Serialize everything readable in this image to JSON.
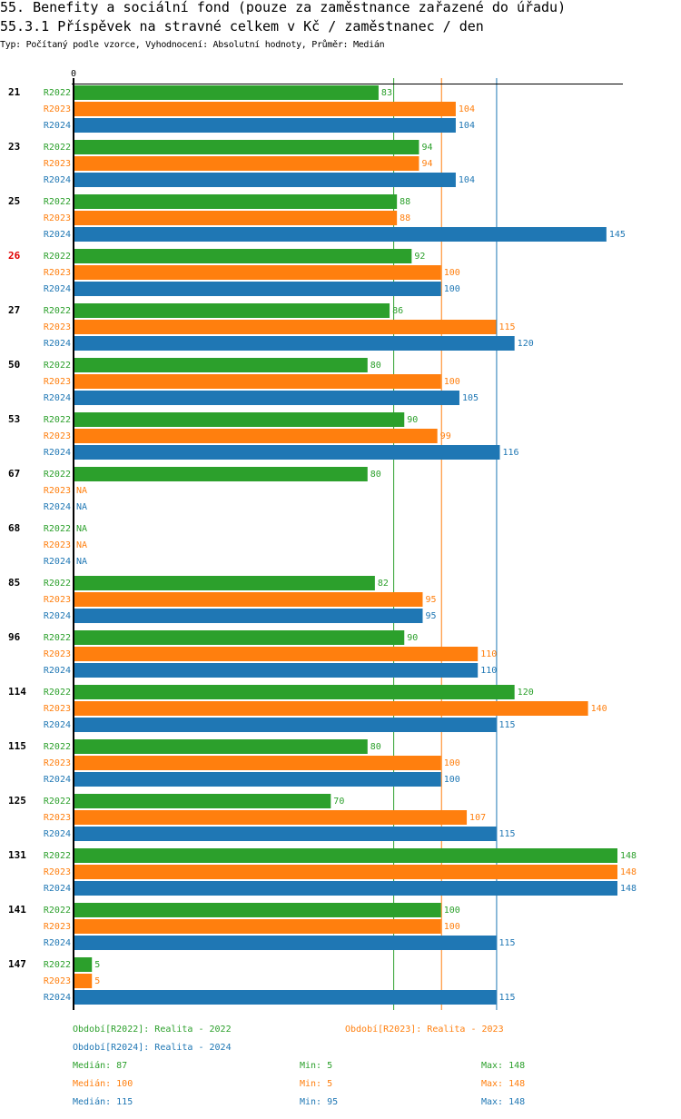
{
  "header": {
    "title": "55. Benefity a sociální fond (pouze za zaměstnance zařazené do úřadu)",
    "subtitle": "55.3.1 Příspěvek na stravné celkem v Kč / zaměstnanec / den",
    "meta": "Typ: Počítaný podle vzorce, Vyhodnocení: Absolutní hodnoty, Průměr: Medián"
  },
  "chart_data": {
    "type": "bar",
    "orientation": "horizontal",
    "title": "55.3.1 Příspěvek na stravné celkem v Kč / zaměstnanec / den",
    "xlabel": "",
    "ylabel": "",
    "axis_zero_label": "0",
    "xlim": [
      0,
      149.5
    ],
    "na_label": "NA",
    "highlight_category": "26",
    "highlight_color": "#e00000",
    "categories": [
      "21",
      "23",
      "25",
      "26",
      "27",
      "50",
      "53",
      "67",
      "68",
      "85",
      "96",
      "114",
      "115",
      "125",
      "131",
      "141",
      "147"
    ],
    "series": [
      {
        "name": "R2022",
        "legend": "Období[R2022]: Realita - 2022",
        "color": "#2ca02c",
        "values": [
          83,
          94,
          88,
          92,
          86,
          80,
          90,
          80,
          null,
          82,
          90,
          120,
          80,
          70,
          148,
          100,
          5
        ],
        "median": 87,
        "min": 5,
        "max": 148,
        "median_label": "Medián: 87",
        "min_label": "Min: 5",
        "max_label": "Max: 148"
      },
      {
        "name": "R2023",
        "legend": "Období[R2023]: Realita - 2023",
        "color": "#ff7f0e",
        "values": [
          104,
          94,
          88,
          100,
          115,
          100,
          99,
          null,
          null,
          95,
          110,
          140,
          100,
          107,
          148,
          100,
          5
        ],
        "median": 100,
        "min": 5,
        "max": 148,
        "median_label": "Medián: 100",
        "min_label": "Min: 5",
        "max_label": "Max: 148"
      },
      {
        "name": "R2024",
        "legend": "Období[R2024]: Realita - 2024",
        "color": "#1f77b4",
        "values": [
          104,
          104,
          145,
          100,
          120,
          105,
          116,
          null,
          null,
          95,
          110,
          115,
          100,
          115,
          148,
          115,
          115
        ],
        "median": 115,
        "min": 95,
        "max": 148,
        "median_label": "Medián: 115",
        "min_label": "Min: 95",
        "max_label": "Max: 148"
      }
    ],
    "grid": false,
    "median_lines": true,
    "legend_position": "bottom"
  }
}
